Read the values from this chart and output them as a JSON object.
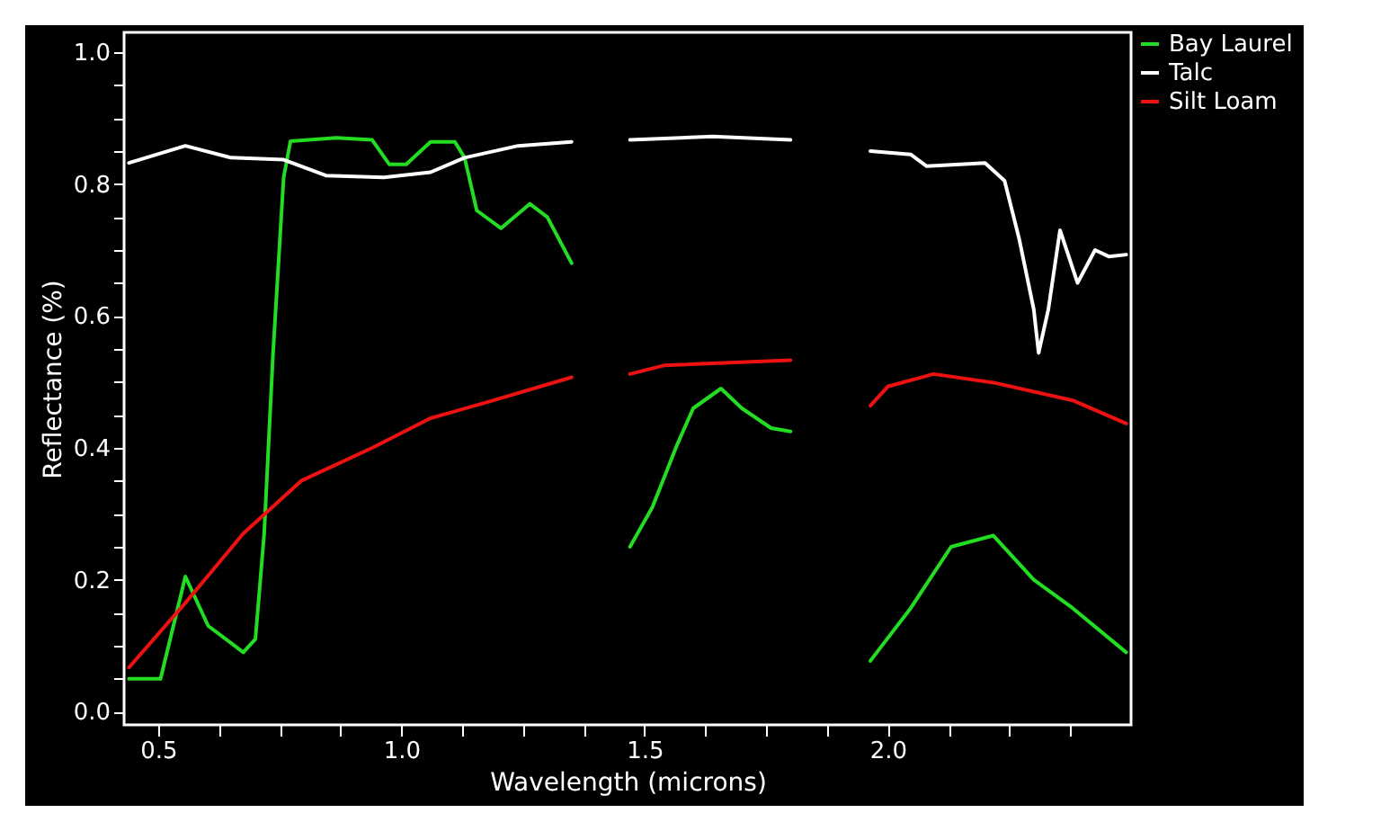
{
  "chart_data": {
    "type": "line",
    "xlabel": "Wavelength (microns)",
    "ylabel": "Reflectance (%)",
    "xlim": [
      0.43,
      2.5
    ],
    "ylim": [
      -0.02,
      1.03
    ],
    "xticks": [
      {
        "value": 0.5,
        "label": "0.5"
      },
      {
        "value": 0.625,
        "label": null
      },
      {
        "value": 0.75,
        "label": null
      },
      {
        "value": 0.875,
        "label": null
      },
      {
        "value": 1.0,
        "label": "1.0"
      },
      {
        "value": 1.125,
        "label": null
      },
      {
        "value": 1.25,
        "label": null
      },
      {
        "value": 1.375,
        "label": null
      },
      {
        "value": 1.5,
        "label": "1.5"
      },
      {
        "value": 1.625,
        "label": null
      },
      {
        "value": 1.75,
        "label": null
      },
      {
        "value": 1.875,
        "label": null
      },
      {
        "value": 2.0,
        "label": "2.0"
      },
      {
        "value": 2.125,
        "label": null
      },
      {
        "value": 2.25,
        "label": null
      },
      {
        "value": 2.375,
        "label": null
      }
    ],
    "yticks": [
      {
        "value": 0,
        "label": "0.0"
      },
      {
        "value": 0.05,
        "label": null
      },
      {
        "value": 0.1,
        "label": null
      },
      {
        "value": 0.15,
        "label": null
      },
      {
        "value": 0.2,
        "label": "0.2"
      },
      {
        "value": 0.25,
        "label": null
      },
      {
        "value": 0.3,
        "label": null
      },
      {
        "value": 0.35,
        "label": null
      },
      {
        "value": 0.4,
        "label": "0.4"
      },
      {
        "value": 0.45,
        "label": null
      },
      {
        "value": 0.5,
        "label": null
      },
      {
        "value": 0.55,
        "label": null
      },
      {
        "value": 0.6,
        "label": "0.6"
      },
      {
        "value": 0.65,
        "label": null
      },
      {
        "value": 0.7,
        "label": null
      },
      {
        "value": 0.75,
        "label": null
      },
      {
        "value": 0.8,
        "label": "0.8"
      },
      {
        "value": 0.85,
        "label": null
      },
      {
        "value": 0.9,
        "label": null
      },
      {
        "value": 0.95,
        "label": null
      },
      {
        "value": 1.0,
        "label": "1.0"
      }
    ],
    "legend": "top right",
    "grid": false,
    "line_style": "solid",
    "marker": "none",
    "series": [
      {
        "name": "Bay Laurel",
        "color": "#22dd22",
        "x": [
          0.44,
          0.505,
          0.556,
          0.603,
          0.675,
          0.7,
          0.718,
          0.736,
          0.758,
          0.772,
          0.866,
          0.94,
          0.975,
          1.01,
          1.06,
          1.11,
          1.13,
          1.155,
          1.205,
          1.264,
          1.3,
          1.35,
          1.41,
          1.47,
          1.516,
          1.567,
          1.6,
          1.657,
          1.7,
          1.76,
          1.8,
          1.88,
          1.964,
          2.047,
          2.13,
          2.217,
          2.3,
          2.38,
          2.49
        ],
        "values": [
          0.05,
          0.05,
          0.205,
          0.13,
          0.09,
          0.11,
          0.27,
          0.54,
          0.81,
          0.865,
          0.87,
          0.867,
          0.83,
          0.83,
          0.864,
          0.864,
          0.84,
          0.76,
          0.733,
          0.77,
          0.75,
          0.68,
          null,
          0.25,
          0.31,
          0.405,
          0.46,
          0.49,
          0.46,
          0.43,
          0.425,
          null,
          0.077,
          0.157,
          0.25,
          0.267,
          0.2,
          0.157,
          0.09
        ]
      },
      {
        "name": "Talc",
        "color": "#ffffff",
        "x": [
          0.44,
          0.556,
          0.65,
          0.758,
          0.845,
          0.964,
          1.06,
          1.13,
          1.24,
          1.35,
          1.41,
          1.47,
          1.64,
          1.8,
          1.88,
          1.964,
          2.047,
          2.08,
          2.2,
          2.24,
          2.27,
          2.3,
          2.31,
          2.33,
          2.354,
          2.39,
          2.426,
          2.455,
          2.49
        ],
        "values": [
          0.832,
          0.858,
          0.84,
          0.837,
          0.813,
          0.81,
          0.818,
          0.84,
          0.858,
          0.864,
          null,
          0.867,
          0.872,
          0.867,
          null,
          0.85,
          0.845,
          0.827,
          0.832,
          0.805,
          0.717,
          0.61,
          0.544,
          0.61,
          0.73,
          0.65,
          0.7,
          0.69,
          0.693
        ]
      },
      {
        "name": "Silt Loam",
        "color": "#ee1111",
        "x": [
          0.44,
          0.556,
          0.675,
          0.794,
          0.94,
          1.06,
          1.18,
          1.35,
          1.41,
          1.47,
          1.54,
          1.8,
          1.88,
          1.964,
          2.0,
          2.094,
          2.217,
          2.38,
          2.49
        ],
        "values": [
          0.067,
          0.165,
          0.27,
          0.35,
          0.4,
          0.445,
          0.47,
          0.507,
          null,
          0.512,
          0.525,
          0.533,
          null,
          0.464,
          0.493,
          0.512,
          0.499,
          0.472,
          0.437
        ]
      }
    ]
  }
}
